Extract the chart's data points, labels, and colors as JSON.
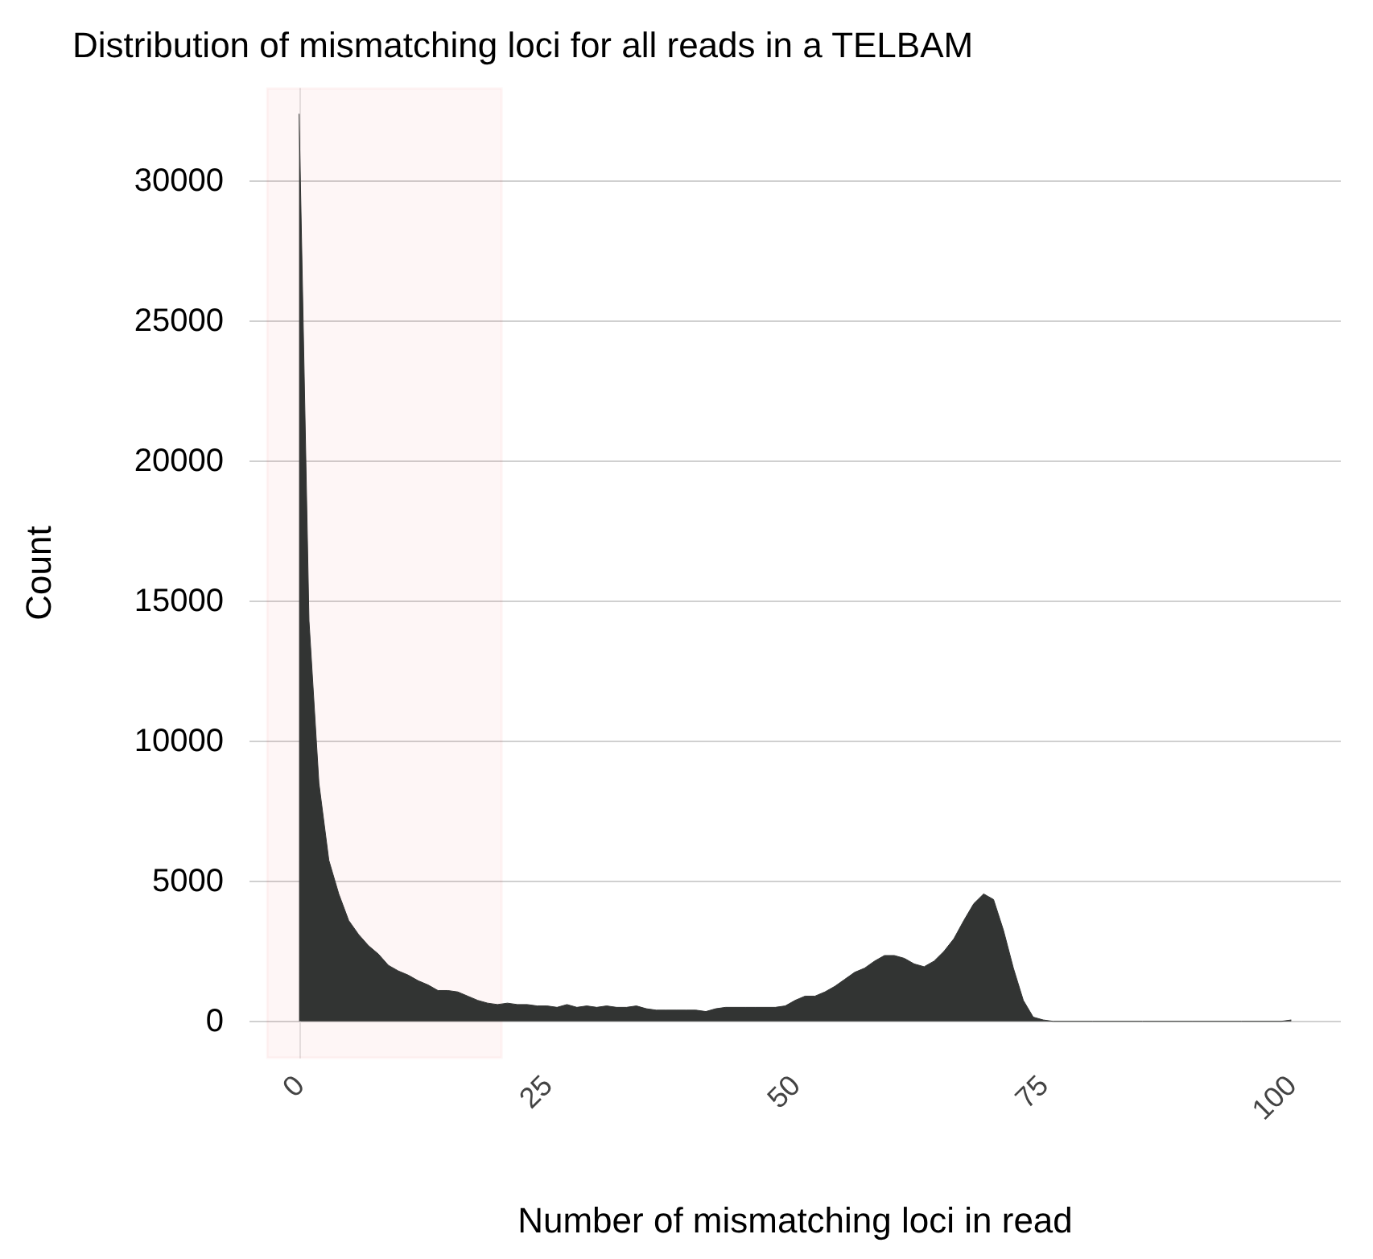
{
  "chart_data": {
    "type": "area",
    "title": "Distribution of mismatching loci for all reads in a TELBAM",
    "xlabel": "Number of mismatching loci in read",
    "ylabel": "Count",
    "x": [
      0,
      1,
      2,
      3,
      4,
      5,
      6,
      7,
      8,
      9,
      10,
      11,
      12,
      13,
      14,
      15,
      16,
      17,
      18,
      19,
      20,
      21,
      22,
      23,
      24,
      25,
      26,
      27,
      28,
      29,
      30,
      31,
      32,
      33,
      34,
      35,
      36,
      37,
      38,
      39,
      40,
      41,
      42,
      43,
      44,
      45,
      46,
      47,
      48,
      49,
      50,
      51,
      52,
      53,
      54,
      55,
      56,
      57,
      58,
      59,
      60,
      61,
      62,
      63,
      64,
      65,
      66,
      67,
      68,
      69,
      70,
      71,
      72,
      73,
      74,
      75,
      76,
      80,
      85,
      90,
      95,
      99,
      100
    ],
    "series": [
      {
        "color": "#323433",
        "values": [
          32400,
          14300,
          8500,
          5750,
          4550,
          3600,
          3100,
          2700,
          2400,
          2000,
          1800,
          1650,
          1450,
          1300,
          1100,
          1100,
          1050,
          900,
          750,
          650,
          600,
          650,
          600,
          600,
          550,
          550,
          500,
          600,
          500,
          550,
          500,
          550,
          500,
          500,
          550,
          450,
          400,
          400,
          400,
          400,
          400,
          350,
          450,
          500,
          500,
          500,
          500,
          500,
          500,
          550,
          750,
          900,
          900,
          1050,
          1250,
          1500,
          1750,
          1900,
          2150,
          2350,
          2350,
          2250,
          2050,
          1950,
          2150,
          2500,
          2950,
          3600,
          4200,
          4550,
          4350,
          3250,
          1900,
          750,
          150,
          50,
          0,
          0,
          0,
          0,
          0,
          0,
          50
        ]
      }
    ],
    "xlim": [
      -5,
      105
    ],
    "xticks": [
      0,
      25,
      50,
      75,
      100
    ],
    "ylim": [
      -1300,
      33300
    ],
    "yticks": [
      0,
      5000,
      10000,
      15000,
      20000,
      25000,
      30000
    ],
    "grid": "y",
    "bands": [
      {
        "axis": "x",
        "from": -3.2,
        "to": 20.4,
        "color": "#ee2222"
      }
    ]
  }
}
